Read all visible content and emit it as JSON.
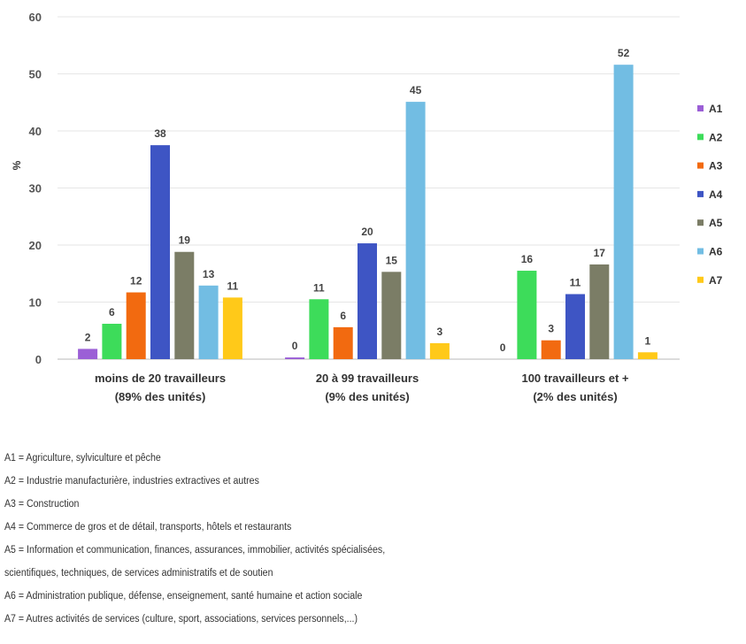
{
  "chart_data": {
    "type": "bar",
    "ylabel": "%",
    "ylim": [
      0,
      60
    ],
    "yticks": [
      "0",
      "10",
      "20",
      "30",
      "40",
      "50",
      "60"
    ],
    "grid": true,
    "legend_position": "right",
    "categories": [
      [
        "moins de 20 travailleurs",
        "(89% des unités)"
      ],
      [
        "20 à 99 travailleurs",
        "(9% des unités)"
      ],
      [
        "100 travailleurs et +",
        "(2% des unités)"
      ]
    ],
    "series": [
      {
        "name": "A1",
        "color": "#9b5fd6",
        "values": [
          1.8,
          0.3,
          0
        ],
        "labels": [
          "2",
          "0",
          "0"
        ]
      },
      {
        "name": "A2",
        "color": "#3ddc5a",
        "values": [
          6.2,
          10.5,
          15.5
        ],
        "labels": [
          "6",
          "11",
          "16"
        ]
      },
      {
        "name": "A3",
        "color": "#f26a10",
        "values": [
          11.7,
          5.6,
          3.3
        ],
        "labels": [
          "12",
          "6",
          "3"
        ]
      },
      {
        "name": "A4",
        "color": "#3e55c4",
        "values": [
          37.5,
          20.3,
          11.4
        ],
        "labels": [
          "38",
          "20",
          "11"
        ]
      },
      {
        "name": "A5",
        "color": "#7b7d66",
        "values": [
          18.8,
          15.3,
          16.6
        ],
        "labels": [
          "19",
          "15",
          "17"
        ]
      },
      {
        "name": "A6",
        "color": "#72bde3",
        "values": [
          12.9,
          45.1,
          51.6
        ],
        "labels": [
          "13",
          "45",
          "52"
        ]
      },
      {
        "name": "A7",
        "color": "#ffc919",
        "values": [
          10.8,
          2.8,
          1.2
        ],
        "labels": [
          "11",
          "3",
          "1"
        ]
      }
    ]
  },
  "notes": [
    "A1 = Agriculture, sylviculture et pêche",
    "A2 = Industrie manufacturière, industries extractives et autres",
    "A3 = Construction",
    "A4 = Commerce de gros et de détail, transports, hôtels et restaurants",
    "A5 = Information et communication, finances, assurances, immobilier, activités spécialisées,",
    "scientifiques, techniques, de services administratifs et de soutien",
    "A6 = Administration publique, défense, enseignement, santé humaine et action sociale",
    "A7 = Autres activités de services (culture, sport, associations, services personnels,...)"
  ]
}
